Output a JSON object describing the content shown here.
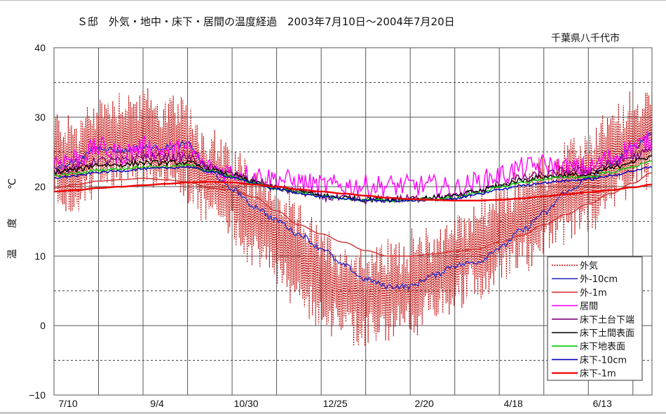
{
  "chart_data": {
    "type": "line",
    "title": "Ｓ邸　外気・地中・床下・居間の温度経過　2003年7月10日～2004年7月20日",
    "subtitle": "千葉県八千代市",
    "xlabel": "",
    "ylabel": "温　度　℃",
    "ylim": [
      -10,
      40
    ],
    "yticks": [
      40,
      30,
      20,
      10,
      0,
      -10
    ],
    "y_minor_dashed": [
      35,
      25,
      15,
      5,
      -5
    ],
    "x_unit": "days since 2003-07-10",
    "xlim": [
      0,
      376
    ],
    "xtick_labels": [
      {
        "day": 0,
        "label": "7/10"
      },
      {
        "day": 56,
        "label": "9/4"
      },
      {
        "day": 112,
        "label": "10/30"
      },
      {
        "day": 168,
        "label": "12/25"
      },
      {
        "day": 224,
        "label": "2/20"
      },
      {
        "day": 280,
        "label": "4/18"
      },
      {
        "day": 336,
        "label": "6/13"
      }
    ],
    "x_grid_interval_days": 28,
    "grid": true,
    "legend_position": "bottom-right",
    "x": [
      0,
      14,
      28,
      42,
      56,
      70,
      84,
      98,
      112,
      126,
      140,
      154,
      168,
      182,
      196,
      210,
      224,
      238,
      252,
      266,
      280,
      294,
      308,
      322,
      336,
      350,
      364,
      376
    ],
    "series": [
      {
        "name": "外気",
        "color": "#c00000",
        "style": "dotted",
        "noise": 9,
        "values": [
          24,
          23,
          26,
          27,
          27,
          26,
          25,
          21,
          19,
          16,
          13,
          10,
          7,
          5,
          4,
          5,
          6,
          7,
          9,
          11,
          13,
          15,
          17,
          19,
          21,
          24,
          26,
          28
        ]
      },
      {
        "name": "外-10cm",
        "color": "#3030c0",
        "style": "solid",
        "noise": 0.4,
        "values": [
          22.5,
          23.5,
          25.5,
          25,
          25.5,
          25.5,
          26,
          22,
          19.5,
          17,
          15,
          13,
          11,
          8.5,
          6.5,
          5.5,
          5.5,
          7,
          8.5,
          9,
          11,
          13.5,
          16,
          19,
          21,
          23,
          25.5,
          27.5
        ]
      },
      {
        "name": "外-1m",
        "color": "#d03030",
        "style": "solid",
        "noise": 0,
        "values": [
          19.8,
          20.3,
          20.8,
          21.0,
          21.2,
          21.0,
          20.7,
          19.8,
          19.5,
          18.5,
          16.5,
          14.5,
          13.2,
          12.0,
          10.8,
          10.0,
          10.0,
          10.3,
          10.7,
          11.0,
          12.0,
          13.0,
          14.5,
          16.0,
          17.5,
          19.0,
          20.5,
          22.0
        ]
      },
      {
        "name": "居間",
        "color": "#ff00ff",
        "style": "solid",
        "noise": 1.6,
        "values": [
          23,
          23.5,
          25,
          24,
          25,
          24.5,
          24.5,
          22,
          21.5,
          21,
          20.5,
          20,
          19.5,
          19.5,
          19.5,
          19.5,
          19.5,
          19.5,
          19,
          20,
          21,
          22,
          22.5,
          22,
          22,
          23.5,
          25,
          26
        ]
      },
      {
        "name": "床下土台下端",
        "color": "#800080",
        "style": "solid",
        "noise": 0.6,
        "values": [
          22,
          22.5,
          23.5,
          23.5,
          24,
          24,
          24,
          22.5,
          21.5,
          20.5,
          19.5,
          19,
          18.3,
          18,
          17.8,
          18,
          18,
          18.2,
          18.3,
          19,
          20,
          21,
          21.5,
          22,
          22,
          23,
          24,
          25
        ]
      },
      {
        "name": "床下土間表面",
        "color": "#000000",
        "style": "solid",
        "noise": 0.35,
        "values": [
          22,
          22.3,
          23,
          23,
          23.3,
          23.3,
          23.3,
          22.3,
          21.5,
          20.5,
          19.7,
          19.2,
          18.6,
          18.3,
          18,
          18,
          18.1,
          18.3,
          18.5,
          19.2,
          20,
          20.8,
          21.3,
          21.5,
          21.5,
          22.5,
          23.5,
          24.2
        ]
      },
      {
        "name": "床下地表面",
        "color": "#00cc00",
        "style": "solid",
        "noise": 0.2,
        "values": [
          21.5,
          21.8,
          22.3,
          22.5,
          22.8,
          22.8,
          23,
          22.2,
          21.3,
          20.4,
          19.6,
          19.1,
          18.6,
          18.2,
          18,
          17.9,
          18,
          18.1,
          18.3,
          19,
          19.8,
          20.5,
          21,
          21.3,
          21.3,
          22,
          22.8,
          23.5
        ]
      },
      {
        "name": "床下-10cm",
        "color": "#0000c0",
        "style": "solid",
        "noise": 0.15,
        "values": [
          21.2,
          21.5,
          22,
          22.2,
          22.5,
          22.6,
          22.8,
          22.1,
          21.3,
          20.4,
          19.6,
          19,
          18.5,
          18.2,
          18,
          17.9,
          17.9,
          18,
          18.2,
          18.8,
          19.5,
          20.1,
          20.5,
          20.8,
          21,
          21.5,
          22.2,
          22.8
        ]
      },
      {
        "name": "床下-1m",
        "color": "#ee0000",
        "style": "solid",
        "noise": 0,
        "bold": true,
        "values": [
          19.3,
          19.5,
          19.8,
          20.0,
          20.2,
          20.4,
          20.6,
          20.7,
          20.6,
          20.3,
          20.0,
          19.6,
          19.3,
          19.0,
          18.7,
          18.4,
          18.2,
          18.1,
          18.0,
          18.0,
          18.1,
          18.3,
          18.6,
          18.9,
          19.2,
          19.5,
          19.9,
          20.3
        ]
      }
    ]
  }
}
